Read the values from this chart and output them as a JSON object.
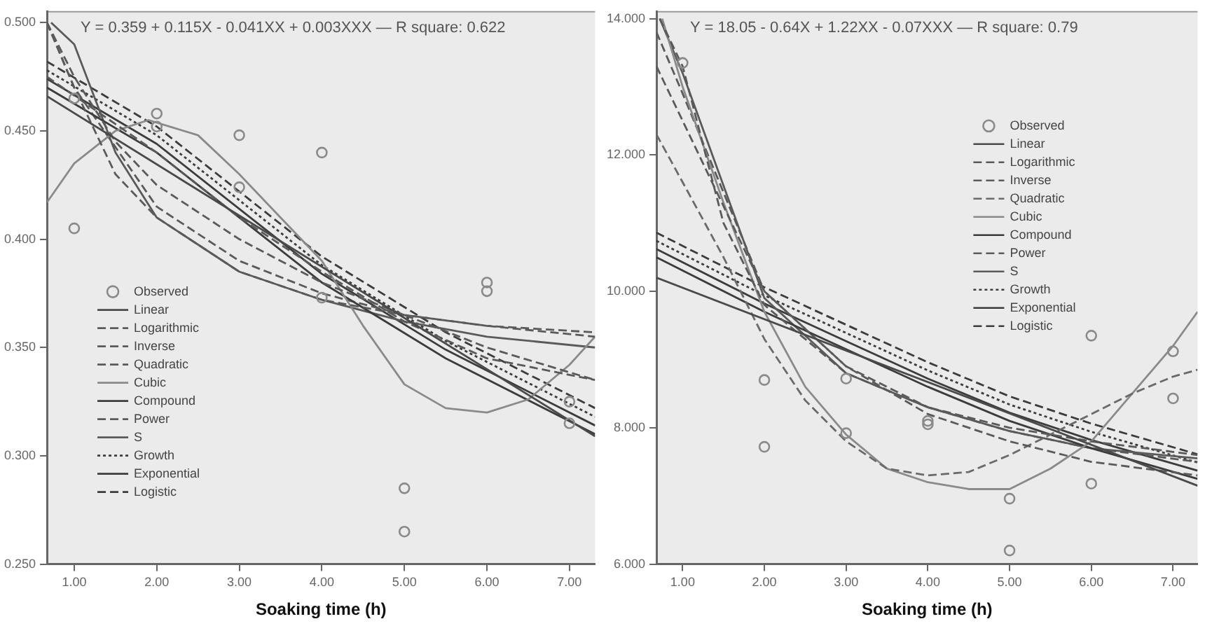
{
  "chart_data": [
    {
      "type": "line",
      "xlabel": "Soaking time (h)",
      "annotations": [
        "Y = 0.359 + 0.115X - 0.041XX + 0.003XXX — R square: 0.622"
      ],
      "xlim": [
        0.67,
        7.31
      ],
      "ylim": [
        0.25,
        0.505
      ],
      "xticks": [
        {
          "value": 1,
          "label": "1.00"
        },
        {
          "value": 2,
          "label": "2.00"
        },
        {
          "value": 3,
          "label": "3.00"
        },
        {
          "value": 4,
          "label": "4.00"
        },
        {
          "value": 5,
          "label": "5.00"
        },
        {
          "value": 6,
          "label": "6.00"
        },
        {
          "value": 7,
          "label": "7.00"
        }
      ],
      "yticks": [
        {
          "value": 0.25,
          "label": "0.250"
        },
        {
          "value": 0.3,
          "label": "0.300"
        },
        {
          "value": 0.35,
          "label": "0.350"
        },
        {
          "value": 0.4,
          "label": "0.400"
        },
        {
          "value": 0.45,
          "label": "0.450"
        },
        {
          "value": 0.5,
          "label": "0.500"
        }
      ],
      "grid": false,
      "legend": "bottom left",
      "series": [
        {
          "name": "Observed",
          "type": "scatter",
          "marker": "circle",
          "color": "#8a8a8a",
          "x": [
            1,
            1,
            2,
            2,
            3,
            3,
            4,
            4,
            5,
            5,
            6,
            6,
            7,
            7
          ],
          "values": [
            0.465,
            0.405,
            0.458,
            0.452,
            0.448,
            0.424,
            0.44,
            0.373,
            0.285,
            0.265,
            0.38,
            0.376,
            0.325,
            0.315
          ]
        },
        {
          "name": "Linear",
          "type": "line",
          "line_style": "solid",
          "color": "#4a4a4a",
          "x": [
            0.67,
            7.31
          ],
          "values": [
            0.466,
            0.309
          ]
        },
        {
          "name": "Logarithmic",
          "type": "line",
          "line_style": "dashed",
          "color": "#5a5a5a",
          "x": [
            0.67,
            1,
            1.5,
            2,
            3,
            4,
            5,
            6,
            7.31
          ],
          "values": [
            0.5,
            0.475,
            0.445,
            0.425,
            0.4,
            0.38,
            0.365,
            0.35,
            0.335
          ]
        },
        {
          "name": "Inverse",
          "type": "line",
          "line_style": "dashed",
          "color": "#5a5a5a",
          "x": [
            0.67,
            1,
            1.5,
            2,
            3,
            4,
            5,
            6,
            7.31
          ],
          "values": [
            0.5,
            0.47,
            0.43,
            0.41,
            0.385,
            0.372,
            0.365,
            0.36,
            0.355
          ]
        },
        {
          "name": "Quadratic",
          "type": "line",
          "line_style": "dashed",
          "color": "#5a5a5a",
          "x": [
            0.67,
            2,
            3,
            4,
            5,
            6,
            7.31
          ],
          "values": [
            0.475,
            0.44,
            0.41,
            0.385,
            0.362,
            0.345,
            0.335
          ]
        },
        {
          "name": "Cubic",
          "type": "line",
          "line_style": "solid",
          "color": "#8a8a8a",
          "x": [
            0.67,
            1,
            1.5,
            1.9,
            2.5,
            3,
            3.5,
            4,
            4.5,
            5,
            5.5,
            6,
            6.5,
            7,
            7.31
          ],
          "values": [
            0.417,
            0.435,
            0.45,
            0.455,
            0.448,
            0.43,
            0.41,
            0.39,
            0.36,
            0.333,
            0.322,
            0.32,
            0.326,
            0.342,
            0.355
          ]
        },
        {
          "name": "Compound",
          "type": "line",
          "line_style": "solid",
          "color": "#3c3c3c",
          "x": [
            0.67,
            2,
            4,
            5.5,
            7.31
          ],
          "values": [
            0.47,
            0.44,
            0.38,
            0.345,
            0.31
          ]
        },
        {
          "name": "Power",
          "type": "line",
          "line_style": "dashed",
          "color": "#5a5a5a",
          "x": [
            0.67,
            1,
            2,
            3,
            4,
            5,
            6,
            7.31
          ],
          "values": [
            0.5,
            0.47,
            0.415,
            0.39,
            0.375,
            0.365,
            0.36,
            0.357
          ]
        },
        {
          "name": "S",
          "type": "line",
          "line_style": "solid",
          "color": "#5a5a5a",
          "x": [
            0.72,
            1,
            1.5,
            2,
            3,
            4,
            5,
            6,
            7.31
          ],
          "values": [
            0.5,
            0.49,
            0.44,
            0.41,
            0.385,
            0.372,
            0.362,
            0.355,
            0.35
          ]
        },
        {
          "name": "Growth",
          "type": "line",
          "line_style": "dotted",
          "color": "#3c3c3c",
          "x": [
            0.67,
            2,
            4,
            5.5,
            7.31
          ],
          "values": [
            0.478,
            0.448,
            0.388,
            0.353,
            0.318
          ]
        },
        {
          "name": "Exponential",
          "type": "line",
          "line_style": "solid",
          "color": "#3c3c3c",
          "x": [
            0.67,
            2,
            4,
            5.5,
            7.31
          ],
          "values": [
            0.474,
            0.444,
            0.384,
            0.349,
            0.314
          ]
        },
        {
          "name": "Logistic",
          "type": "line",
          "line_style": "dashed",
          "color": "#3c3c3c",
          "x": [
            0.67,
            2,
            4,
            5.5,
            7.31
          ],
          "values": [
            0.482,
            0.452,
            0.392,
            0.357,
            0.322
          ]
        }
      ]
    },
    {
      "type": "line",
      "xlabel": "Soaking time (h)",
      "annotations": [
        "Y = 18.05 - 0.64X + 1.22XX - 0.07XXX — R square: 0.79"
      ],
      "xlim": [
        0.68,
        7.3
      ],
      "ylim": [
        6,
        14.1
      ],
      "xticks": [
        {
          "value": 1,
          "label": "1.00"
        },
        {
          "value": 2,
          "label": "2.00"
        },
        {
          "value": 3,
          "label": "3.00"
        },
        {
          "value": 4,
          "label": "4.00"
        },
        {
          "value": 5,
          "label": "5.00"
        },
        {
          "value": 6,
          "label": "6.00"
        },
        {
          "value": 7,
          "label": "7.00"
        }
      ],
      "yticks": [
        {
          "value": 6,
          "label": "6.000"
        },
        {
          "value": 8,
          "label": "8.000"
        },
        {
          "value": 10,
          "label": "10.000"
        },
        {
          "value": 12,
          "label": "12.000"
        },
        {
          "value": 14,
          "label": "14.000"
        }
      ],
      "grid": false,
      "legend": "top right",
      "series": [
        {
          "name": "Observed",
          "type": "scatter",
          "marker": "circle",
          "color": "#8a8a8a",
          "x": [
            1,
            2,
            2,
            3,
            3,
            4,
            4,
            5,
            5,
            6,
            6,
            7,
            7
          ],
          "values": [
            13.35,
            8.7,
            7.72,
            8.72,
            7.92,
            8.1,
            8.05,
            6.96,
            6.2,
            9.35,
            7.18,
            9.12,
            8.43
          ]
        },
        {
          "name": "Linear",
          "type": "line",
          "line_style": "solid",
          "color": "#4a4a4a",
          "x": [
            0.68,
            7.3
          ],
          "values": [
            10.2,
            7.15
          ]
        },
        {
          "name": "Logarithmic",
          "type": "line",
          "line_style": "dashed",
          "color": "#5a5a5a",
          "x": [
            0.68,
            1,
            2,
            3,
            4,
            5,
            6,
            7.3
          ],
          "values": [
            13.3,
            12.5,
            10,
            8.9,
            8.2,
            7.8,
            7.5,
            7.3
          ]
        },
        {
          "name": "Inverse",
          "type": "line",
          "line_style": "dashed",
          "color": "#5a5a5a",
          "x": [
            0.72,
            1,
            1.5,
            2,
            3,
            4,
            5,
            6,
            7.3
          ],
          "values": [
            14,
            13.3,
            11,
            9.8,
            8.8,
            8.3,
            8,
            7.8,
            7.6
          ]
        },
        {
          "name": "Quadratic",
          "type": "line",
          "line_style": "dashed",
          "color": "#6a6a6a",
          "x": [
            0.68,
            1,
            1.5,
            2,
            2.5,
            3,
            3.5,
            4,
            4.5,
            5,
            5.5,
            6,
            6.5,
            7,
            7.3
          ],
          "values": [
            12.3,
            11.6,
            10.5,
            9.3,
            8.4,
            7.8,
            7.4,
            7.3,
            7.35,
            7.6,
            7.9,
            8.2,
            8.5,
            8.75,
            8.85
          ]
        },
        {
          "name": "Cubic",
          "type": "line",
          "line_style": "solid",
          "color": "#8a8a8a",
          "x": [
            0.75,
            1,
            1.5,
            2,
            2.5,
            3,
            3.5,
            4,
            4.5,
            5,
            5.5,
            6,
            6.5,
            7,
            7.3
          ],
          "values": [
            14,
            13,
            11.3,
            9.7,
            8.6,
            7.9,
            7.4,
            7.2,
            7.1,
            7.1,
            7.4,
            7.8,
            8.5,
            9.2,
            9.7
          ]
        },
        {
          "name": "Compound",
          "type": "line",
          "line_style": "solid",
          "color": "#3c3c3c",
          "x": [
            0.68,
            2,
            3,
            4,
            5,
            6,
            7.3
          ],
          "values": [
            10.5,
            9.7,
            9.15,
            8.6,
            8.1,
            7.7,
            7.25
          ]
        },
        {
          "name": "Power",
          "type": "line",
          "line_style": "dashed",
          "color": "#5a5a5a",
          "x": [
            0.68,
            1,
            2,
            3,
            4,
            5,
            6,
            7.3
          ],
          "values": [
            13.8,
            12.9,
            10,
            8.9,
            8.3,
            7.95,
            7.7,
            7.5
          ]
        },
        {
          "name": "S",
          "type": "line",
          "line_style": "solid",
          "color": "#5a5a5a",
          "x": [
            0.72,
            1,
            2,
            3,
            4,
            5,
            6,
            7.3
          ],
          "values": [
            14,
            13.2,
            9.9,
            8.8,
            8.3,
            7.95,
            7.7,
            7.55
          ]
        },
        {
          "name": "Growth",
          "type": "line",
          "line_style": "dotted",
          "color": "#3c3c3c",
          "x": [
            0.68,
            2,
            3,
            4,
            5,
            6,
            7.3
          ],
          "values": [
            10.74,
            9.94,
            9.39,
            8.84,
            8.34,
            7.94,
            7.49
          ]
        },
        {
          "name": "Exponential",
          "type": "line",
          "line_style": "solid",
          "color": "#3c3c3c",
          "x": [
            0.68,
            2,
            3,
            4,
            5,
            6,
            7.3
          ],
          "values": [
            10.62,
            9.82,
            9.27,
            8.72,
            8.22,
            7.82,
            7.37
          ]
        },
        {
          "name": "Logistic",
          "type": "line",
          "line_style": "dashed",
          "color": "#3c3c3c",
          "x": [
            0.68,
            2,
            3,
            4,
            5,
            6,
            7.3
          ],
          "values": [
            10.86,
            10.06,
            9.51,
            8.96,
            8.46,
            8.06,
            7.61
          ]
        }
      ]
    }
  ]
}
